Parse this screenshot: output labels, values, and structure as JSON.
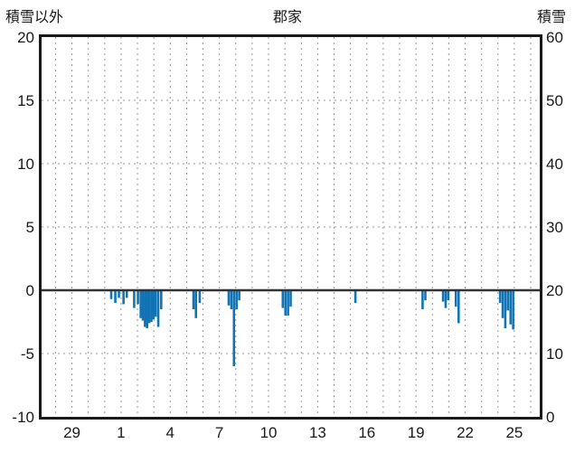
{
  "chart_data": {
    "type": "bar",
    "title": "郡家",
    "left_axis": {
      "title": "積雪以外",
      "min": -10,
      "max": 20,
      "ticks": [
        20,
        15,
        10,
        5,
        0,
        -5,
        -10
      ]
    },
    "right_axis": {
      "title": "積雪",
      "min": 0,
      "max": 60,
      "ticks": [
        60,
        50,
        40,
        30,
        20,
        10,
        0
      ]
    },
    "x_axis": {
      "domain_days": 30.4,
      "first_gridline_day": 0.85,
      "gridline_step": 1,
      "tick_labels": [
        "29",
        "1",
        "4",
        "7",
        "10",
        "13",
        "16",
        "19",
        "22",
        "25"
      ],
      "first_label_day": 1.85,
      "label_step": 3
    },
    "zero_line_value": 0,
    "grid": true,
    "legend": "none",
    "series": {
      "bars": [
        [
          4.25,
          -0.7
        ],
        [
          4.5,
          -1.0
        ],
        [
          4.72,
          -0.6
        ],
        [
          5.0,
          -1.1
        ],
        [
          5.2,
          -0.6
        ],
        [
          5.65,
          -1.4
        ],
        [
          5.88,
          -1.1
        ],
        [
          6.05,
          -2.2
        ],
        [
          6.18,
          -2.4
        ],
        [
          6.31,
          -2.9
        ],
        [
          6.44,
          -3.0
        ],
        [
          6.57,
          -2.6
        ],
        [
          6.7,
          -2.5
        ],
        [
          6.83,
          -2.3
        ],
        [
          6.96,
          -2.1
        ],
        [
          7.12,
          -2.9
        ],
        [
          7.3,
          -1.5
        ],
        [
          9.27,
          -1.5
        ],
        [
          9.42,
          -2.2
        ],
        [
          9.65,
          -1.0
        ],
        [
          11.42,
          -1.2
        ],
        [
          11.58,
          -1.5
        ],
        [
          11.74,
          -6.0
        ],
        [
          11.9,
          -1.5
        ],
        [
          12.06,
          -0.8
        ],
        [
          14.72,
          -1.4
        ],
        [
          14.88,
          -2.0
        ],
        [
          15.04,
          -2.0
        ],
        [
          15.2,
          -1.3
        ],
        [
          19.15,
          -1.0
        ],
        [
          23.25,
          -1.5
        ],
        [
          23.42,
          -0.8
        ],
        [
          24.5,
          -0.9
        ],
        [
          24.66,
          -1.4
        ],
        [
          24.82,
          -0.8
        ],
        [
          25.28,
          -1.3
        ],
        [
          25.45,
          -2.6
        ],
        [
          27.98,
          -1.0
        ],
        [
          28.14,
          -2.2
        ],
        [
          28.3,
          -3.0
        ],
        [
          28.46,
          -1.6
        ],
        [
          28.62,
          -2.7
        ],
        [
          28.78,
          -3.1
        ]
      ]
    },
    "colors": {
      "bar": "#1273b5",
      "grid": "#999999",
      "zero_line": "#333333",
      "frame": "#1a1a1a",
      "background": "#ffffff",
      "text": "#1a1a1a"
    }
  }
}
